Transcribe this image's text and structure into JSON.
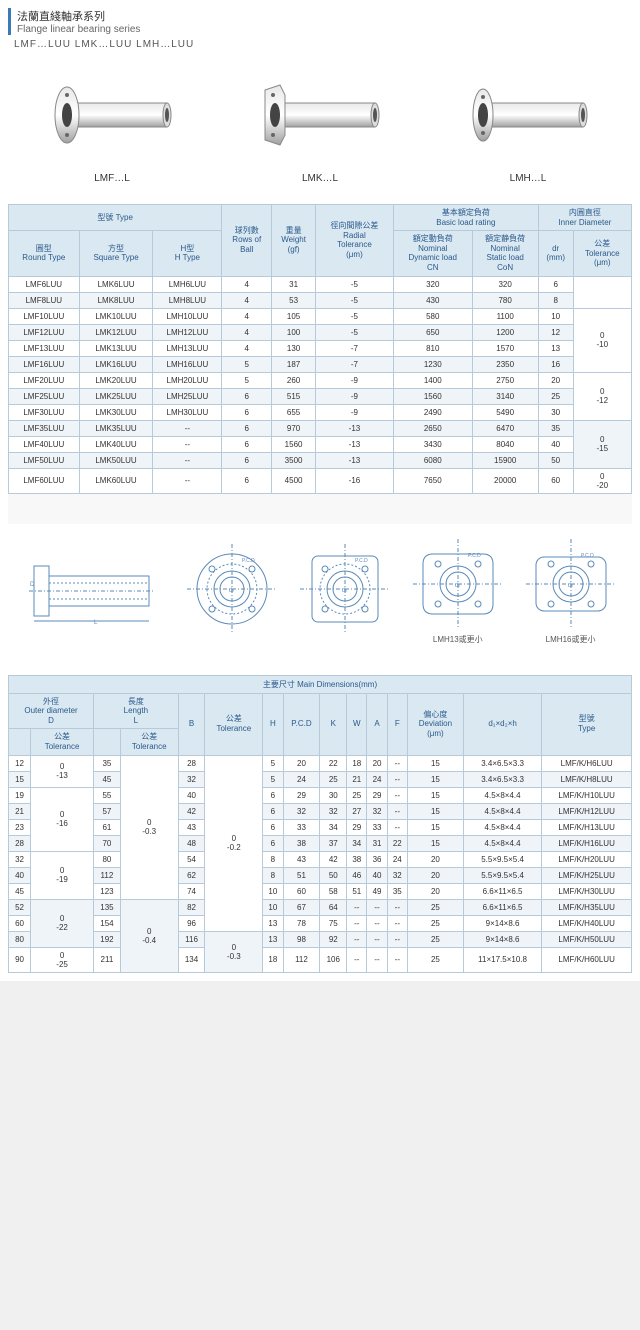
{
  "header": {
    "title_cn": "法蘭直綫軸承系列",
    "title_en": "Flange linear bearing series",
    "subtitle": "LMF…LUU  LMK…LUU  LMH…LUU"
  },
  "products": [
    {
      "label": "LMF…L",
      "flange": "round"
    },
    {
      "label": "LMK…L",
      "flange": "square"
    },
    {
      "label": "LMH…L",
      "flange": "oval"
    }
  ],
  "colors": {
    "header_bg": "#dae8f2",
    "border": "#b8c9d9",
    "text_header": "#2a5a8a",
    "row_alt": "#eef4f8",
    "accent": "#3a7ab8",
    "metal_light": "#e8e8e8",
    "metal_dark": "#a0a0a0"
  },
  "table1": {
    "headers": {
      "type_group": "型號 Type",
      "round": "圓型\nRound Type",
      "square": "方型\nSquare Type",
      "h": "H型\nH Type",
      "rows_ball": "球列數\nRows of\nBall",
      "weight": "重量\nWeight\n(gf)",
      "radial": "徑向間隙公差\nRadial\nTolerance\n(μm)",
      "load_group": "基本額定負荷\nBasic load rating",
      "dynamic": "額定動負荷\nNominal\nDynamic load\nCN",
      "static": "額定静負荷\nNominal\nStatic load\nCoN",
      "inner_group": "内圓直徑\nInner Diameter",
      "dr": "dr\n(mm)",
      "tol": "公差\nTolerance\n(μm)"
    },
    "rows": [
      [
        "LMF6LUU",
        "LMK6LUU",
        "LMH6LUU",
        "4",
        "31",
        "-5",
        "320",
        "320",
        "6"
      ],
      [
        "LMF8LUU",
        "LMK8LUU",
        "LMH8LUU",
        "4",
        "53",
        "-5",
        "430",
        "780",
        "8"
      ],
      [
        "LMF10LUU",
        "LMK10LUU",
        "LMH10LUU",
        "4",
        "105",
        "-5",
        "580",
        "1100",
        "10"
      ],
      [
        "LMF12LUU",
        "LMK12LUU",
        "LMH12LUU",
        "4",
        "100",
        "-5",
        "650",
        "1200",
        "12"
      ],
      [
        "LMF13LUU",
        "LMK13LUU",
        "LMH13LUU",
        "4",
        "130",
        "-7",
        "810",
        "1570",
        "13"
      ],
      [
        "LMF16LUU",
        "LMK16LUU",
        "LMH16LUU",
        "5",
        "187",
        "-7",
        "1230",
        "2350",
        "16"
      ],
      [
        "LMF20LUU",
        "LMK20LUU",
        "LMH20LUU",
        "5",
        "260",
        "-9",
        "1400",
        "2750",
        "20"
      ],
      [
        "LMF25LUU",
        "LMK25LUU",
        "LMH25LUU",
        "6",
        "515",
        "-9",
        "1560",
        "3140",
        "25"
      ],
      [
        "LMF30LUU",
        "LMK30LUU",
        "LMH30LUU",
        "6",
        "655",
        "-9",
        "2490",
        "5490",
        "30"
      ],
      [
        "LMF35LUU",
        "LMK35LUU",
        "--",
        "6",
        "970",
        "-13",
        "2650",
        "6470",
        "35"
      ],
      [
        "LMF40LUU",
        "LMK40LUU",
        "--",
        "6",
        "1560",
        "-13",
        "3430",
        "8040",
        "40"
      ],
      [
        "LMF50LUU",
        "LMK50LUU",
        "--",
        "6",
        "3500",
        "-13",
        "6080",
        "15900",
        "50"
      ],
      [
        "LMF60LUU",
        "LMK60LUU",
        "--",
        "6",
        "4500",
        "-16",
        "7650",
        "20000",
        "60"
      ]
    ],
    "tol_groups": [
      {
        "span": 2,
        "val": ""
      },
      {
        "span": 4,
        "val": "0\n-10"
      },
      {
        "span": 3,
        "val": "0\n-12"
      },
      {
        "span": 3,
        "val": "0\n-15"
      },
      {
        "span": 1,
        "val": "0\n-20"
      }
    ]
  },
  "diagrams": {
    "labels": [
      "",
      "",
      "",
      "LMH13或更小",
      "LMH16或更小"
    ]
  },
  "table2": {
    "title": "主要尺寸 Main Dimensions(mm)",
    "headers": {
      "od": "外徑\nOuter diameter\nD",
      "od_tol": "公差\nTolerance",
      "len": "長度\nLength\nL",
      "len_tol": "公差\nTolerance",
      "b": "B",
      "b_tol": "公差\nTolerance",
      "h": "H",
      "pcd": "P.C.D",
      "k": "K",
      "w": "W",
      "a": "A",
      "f": "F",
      "dev": "偏心度\nDeviation\n(μm)",
      "d1d2h": "d₁×d₂×h",
      "type": "型號\nType"
    },
    "rows": [
      [
        "12",
        "",
        "35",
        "",
        "28",
        "",
        "5",
        "20",
        "22",
        "18",
        "20",
        "--",
        "15",
        "3.4×6.5×3.3",
        "LMF/K/H6LUU"
      ],
      [
        "15",
        "0\n-13",
        "45",
        "",
        "32",
        "",
        "5",
        "24",
        "25",
        "21",
        "24",
        "--",
        "15",
        "3.4×6.5×3.3",
        "LMF/K/H8LUU"
      ],
      [
        "19",
        "",
        "55",
        "",
        "40",
        "",
        "6",
        "29",
        "30",
        "25",
        "29",
        "--",
        "15",
        "4.5×8×4.4",
        "LMF/K/H10LUU"
      ],
      [
        "21",
        "0\n-16",
        "57",
        "0\n-0.3",
        "42",
        "",
        "6",
        "32",
        "32",
        "27",
        "32",
        "--",
        "15",
        "4.5×8×4.4",
        "LMF/K/H12LUU"
      ],
      [
        "23",
        "",
        "61",
        "",
        "43",
        "0\n-0.2",
        "6",
        "33",
        "34",
        "29",
        "33",
        "--",
        "15",
        "4.5×8×4.4",
        "LMF/K/H13LUU"
      ],
      [
        "28",
        "",
        "70",
        "",
        "48",
        "",
        "6",
        "38",
        "37",
        "34",
        "31",
        "22",
        "15",
        "4.5×8×4.4",
        "LMF/K/H16LUU"
      ],
      [
        "32",
        "",
        "80",
        "",
        "54",
        "",
        "8",
        "43",
        "42",
        "38",
        "36",
        "24",
        "20",
        "5.5×9.5×5.4",
        "LMF/K/H20LUU"
      ],
      [
        "40",
        "0\n-19",
        "112",
        "",
        "62",
        "",
        "8",
        "51",
        "50",
        "46",
        "40",
        "32",
        "20",
        "5.5×9.5×5.4",
        "LMF/K/H25LUU"
      ],
      [
        "45",
        "",
        "123",
        "",
        "74",
        "",
        "10",
        "60",
        "58",
        "51",
        "49",
        "35",
        "20",
        "6.6×11×6.5",
        "LMF/K/H30LUU"
      ],
      [
        "52",
        "",
        "135",
        "0\n-0.4",
        "82",
        "",
        "10",
        "67",
        "64",
        "--",
        "--",
        "--",
        "25",
        "6.6×11×6.5",
        "LMF/K/H35LUU"
      ],
      [
        "60",
        "0\n-22",
        "154",
        "",
        "96",
        "",
        "13",
        "78",
        "75",
        "--",
        "--",
        "--",
        "25",
        "9×14×8.6",
        "LMF/K/H40LUU"
      ],
      [
        "80",
        "",
        "192",
        "",
        "116",
        "0\n-0.3",
        "13",
        "98",
        "92",
        "--",
        "--",
        "--",
        "25",
        "9×14×8.6",
        "LMF/K/H50LUU"
      ],
      [
        "90",
        "0\n-25",
        "211",
        "",
        "134",
        "",
        "18",
        "112",
        "106",
        "--",
        "--",
        "--",
        "25",
        "11×17.5×10.8",
        "LMF/K/H60LUU"
      ]
    ],
    "od_tol_spans": [
      {
        "start": 0,
        "span": 2,
        "val": "0\n-13"
      },
      {
        "start": 2,
        "span": 4,
        "val": "0\n-16"
      },
      {
        "start": 6,
        "span": 3,
        "val": "0\n-19"
      },
      {
        "start": 9,
        "span": 3,
        "val": "0\n-22"
      },
      {
        "start": 12,
        "span": 1,
        "val": "0\n-25"
      }
    ],
    "len_tol_spans": [
      {
        "start": 0,
        "span": 9,
        "val": "0\n-0.3"
      },
      {
        "start": 9,
        "span": 4,
        "val": "0\n-0.4"
      }
    ],
    "b_tol_spans": [
      {
        "start": 0,
        "span": 11,
        "val": "0\n-0.2"
      },
      {
        "start": 11,
        "span": 2,
        "val": "0\n-0.3"
      }
    ]
  }
}
